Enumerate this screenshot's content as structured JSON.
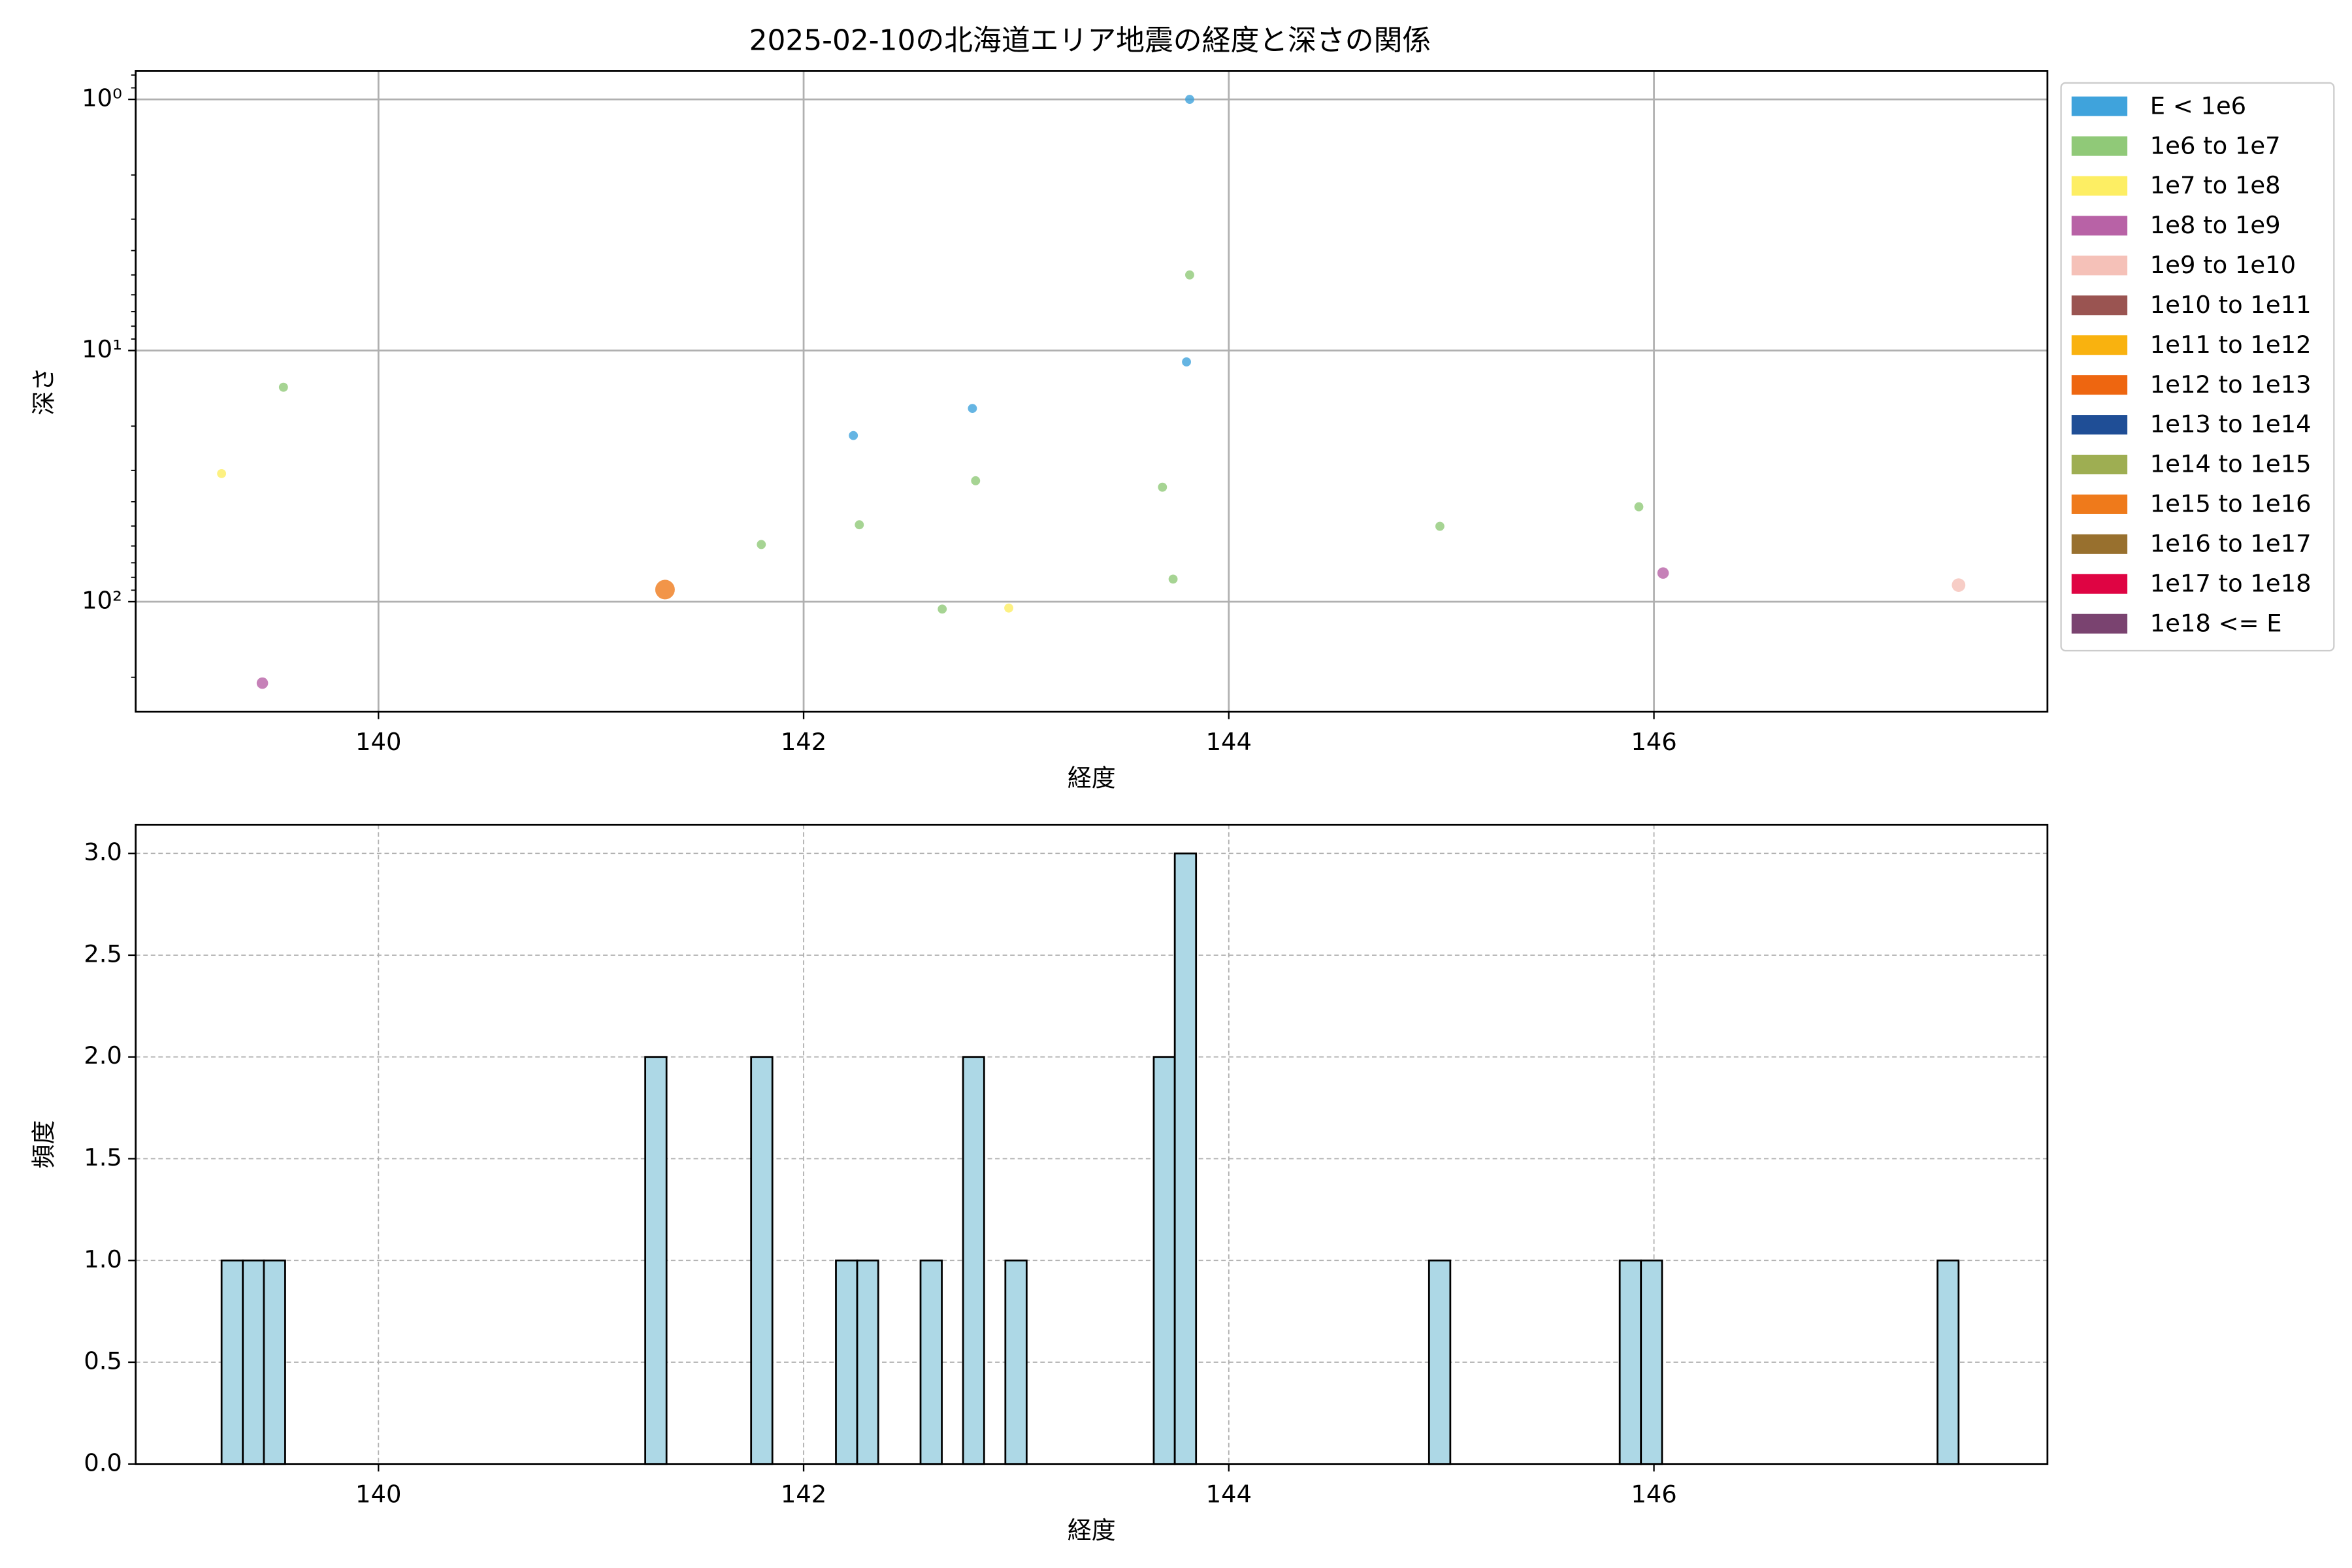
{
  "chart_data": [
    {
      "type": "scatter",
      "title": "2025-02-10の北海道エリア地震の経度と深さの関係",
      "xlabel": "経度",
      "ylabel": "深さ",
      "yscale": "log",
      "grid": true,
      "legend": "outside-right",
      "xlim": [
        138.858,
        147.851
      ],
      "xticks": [
        140,
        142,
        144,
        146
      ],
      "ylim": [
        274,
        0.77
      ],
      "yticks": [
        {
          "value": 1,
          "label": "10⁰"
        },
        {
          "value": 10,
          "label": "10¹"
        },
        {
          "value": 100,
          "label": "10²"
        }
      ],
      "series": [
        {
          "name": "E < 1e6",
          "color": "#3fa3dc",
          "marker_size": 3,
          "x": [
            143.816,
            143.801,
            142.794,
            142.234
          ],
          "values": [
            1.0,
            11.1,
            17.0,
            21.8
          ]
        },
        {
          "name": "1e6 to 1e7",
          "color": "#90c978",
          "marker_size": 3,
          "x": [
            143.816,
            139.553,
            142.809,
            143.688,
            145.929,
            142.262,
            144.993,
            141.801,
            143.738,
            142.652
          ],
          "values": [
            5.0,
            14.0,
            33,
            35,
            41.9,
            49.4,
            50.1,
            59.2,
            81.3,
            107
          ]
        },
        {
          "name": "1e7 to 1e8",
          "color": "#fdee63",
          "marker_size": 3,
          "x": [
            139.262,
            142.965
          ],
          "values": [
            30.9,
            106
          ]
        },
        {
          "name": "1e8 to 1e9",
          "color": "#b862a6",
          "marker_size": 3.8,
          "x": [
            146.043,
            139.454
          ],
          "values": [
            76.9,
            211
          ]
        },
        {
          "name": "1e9 to 1e10",
          "color": "#f5c1b8",
          "marker_size": 4.5,
          "x": [
            147.433
          ],
          "values": [
            85.9
          ]
        },
        {
          "name": "1e10 to 1e11",
          "color": "#9a5451",
          "marker_size": 5,
          "x": [],
          "values": []
        },
        {
          "name": "1e11 to 1e12",
          "color": "#f9b20f",
          "marker_size": 5,
          "x": [],
          "values": []
        },
        {
          "name": "1e12 to 1e13",
          "color": "#ee6610",
          "marker_size": 5.5,
          "x": [],
          "values": []
        },
        {
          "name": "1e13 to 1e14",
          "color": "#1f4e96",
          "marker_size": 6,
          "x": [],
          "values": []
        },
        {
          "name": "1e14 to 1e15",
          "color": "#9eae52",
          "marker_size": 6,
          "x": [],
          "values": []
        },
        {
          "name": "1e15 to 1e16",
          "color": "#ef7a1b",
          "marker_size": 6.5,
          "x": [
            141.348
          ],
          "values": [
            89.5
          ]
        },
        {
          "name": "1e16 to 1e17",
          "color": "#98702e",
          "marker_size": 7,
          "x": [],
          "values": []
        },
        {
          "name": "1e17 to 1e18",
          "color": "#df0443",
          "marker_size": 7,
          "x": [],
          "values": []
        },
        {
          "name": "1e18 <= E",
          "color": "#7a4370",
          "marker_size": 7.5,
          "x": [],
          "values": []
        }
      ]
    },
    {
      "type": "histogram",
      "xlabel": "経度",
      "ylabel": "頻度",
      "grid": true,
      "color": "#add8e6",
      "edgecolor": "#000000",
      "xlim": [
        138.858,
        147.851
      ],
      "xticks": [
        140,
        142,
        144,
        146
      ],
      "ylim": [
        0,
        3.141
      ],
      "yticks": [
        {
          "value": 0,
          "label": "0.0"
        },
        {
          "value": 0.5,
          "label": "0.5"
        },
        {
          "value": 1,
          "label": "1.0"
        },
        {
          "value": 1.5,
          "label": "1.5"
        },
        {
          "value": 2,
          "label": "2.0"
        },
        {
          "value": 2.5,
          "label": "2.5"
        },
        {
          "value": 3,
          "label": "3.0"
        }
      ],
      "bins": [
        139.262,
        139.362,
        139.461,
        139.561,
        139.661,
        139.76,
        139.86,
        139.96,
        140.059,
        140.159,
        140.259,
        140.358,
        140.458,
        140.557,
        140.657,
        140.757,
        140.856,
        140.956,
        141.056,
        141.155,
        141.255,
        141.355,
        141.454,
        141.554,
        141.654,
        141.753,
        141.853,
        141.953,
        142.052,
        142.152,
        142.252,
        142.351,
        142.451,
        142.55,
        142.65,
        142.75,
        142.849,
        142.949,
        143.049,
        143.148,
        143.248,
        143.348,
        143.447,
        143.547,
        143.647,
        143.746,
        143.846,
        143.946,
        144.045,
        144.145,
        144.245,
        144.344,
        144.444,
        144.543,
        144.643,
        144.743,
        144.842,
        144.942,
        145.042,
        145.141,
        145.241,
        145.341,
        145.44,
        145.54,
        145.64,
        145.739,
        145.839,
        145.939,
        146.038,
        146.138,
        146.238,
        146.337,
        146.437,
        146.536,
        146.636,
        146.736,
        146.835,
        146.935,
        147.035,
        147.134,
        147.234,
        147.334,
        147.433
      ],
      "values": [
        1,
        1,
        1,
        0,
        0,
        0,
        0,
        0,
        0,
        0,
        0,
        0,
        0,
        0,
        0,
        0,
        0,
        0,
        0,
        0,
        2,
        0,
        0,
        0,
        0,
        2,
        0,
        0,
        0,
        1,
        1,
        0,
        0,
        1,
        0,
        2,
        0,
        1,
        0,
        0,
        0,
        0,
        0,
        0,
        2,
        3,
        0,
        0,
        0,
        0,
        0,
        0,
        0,
        0,
        0,
        0,
        0,
        1,
        0,
        0,
        0,
        0,
        0,
        0,
        0,
        0,
        1,
        1,
        0,
        0,
        0,
        0,
        0,
        0,
        0,
        0,
        0,
        0,
        0,
        0,
        0,
        1
      ]
    }
  ]
}
